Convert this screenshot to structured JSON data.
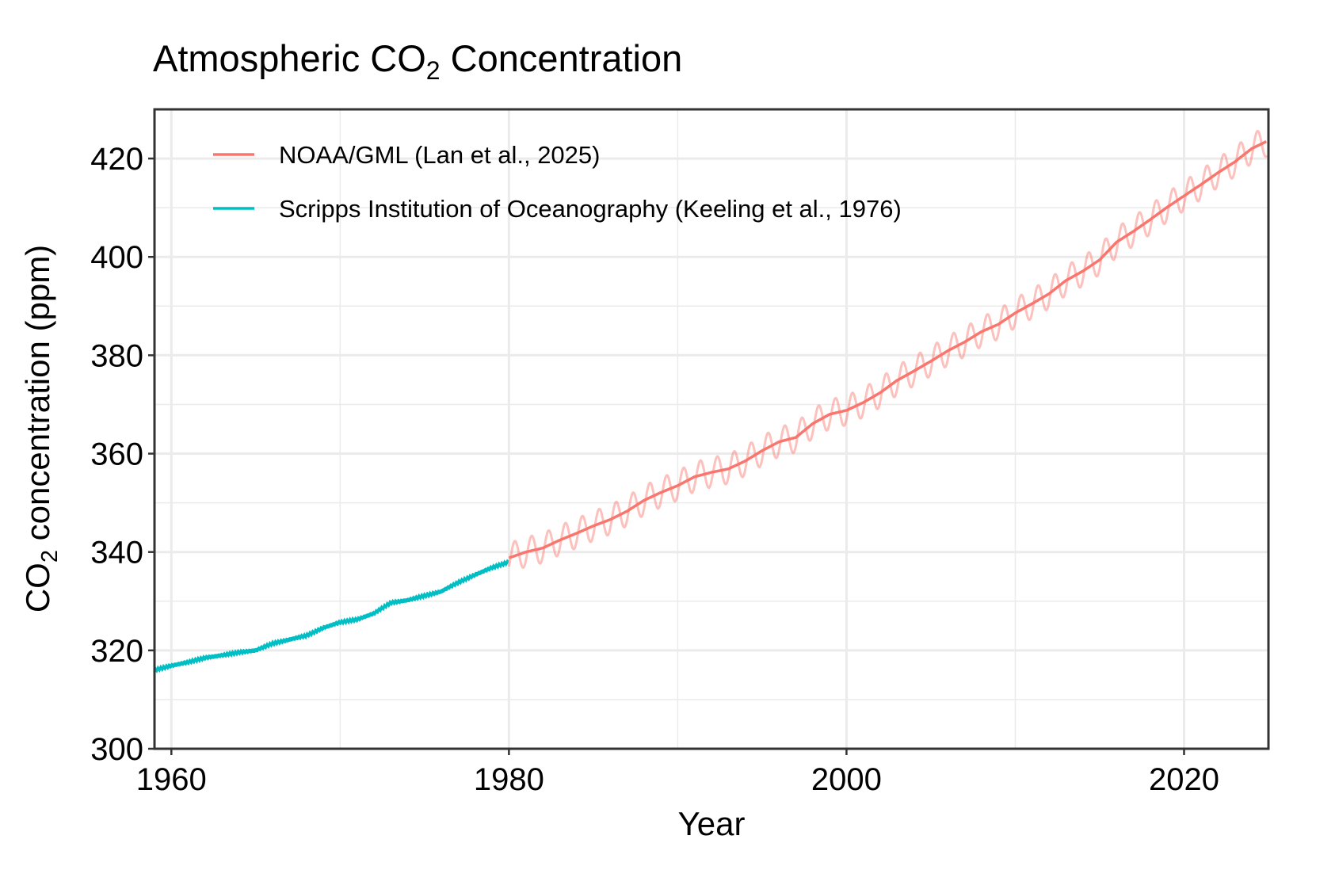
{
  "chart_data": {
    "type": "line",
    "title": {
      "main": "Atmospheric CO",
      "sub": "2",
      "rest": " Concentration"
    },
    "xlabel": "Year",
    "ylabel": {
      "main": "CO",
      "sub": "2",
      "rest": " concentration (ppm)"
    },
    "xlim": [
      1959,
      2025
    ],
    "ylim": [
      300,
      430
    ],
    "x_ticks": [
      1960,
      1980,
      2000,
      2020
    ],
    "y_ticks": [
      300,
      320,
      340,
      360,
      380,
      400,
      420
    ],
    "grid": true,
    "legend_position": "top-left",
    "series": [
      {
        "name": "NOAA/GML (Lan et al., 2025)",
        "color": "#F8766D",
        "seasonal_amplitude_ppm": 3,
        "x": [
          1980,
          1981,
          1982,
          1983,
          1984,
          1985,
          1986,
          1987,
          1988,
          1989,
          1990,
          1991,
          1992,
          1993,
          1994,
          1995,
          1996,
          1997,
          1998,
          1999,
          2000,
          2001,
          2002,
          2003,
          2004,
          2005,
          2006,
          2007,
          2008,
          2009,
          2010,
          2011,
          2012,
          2013,
          2014,
          2015,
          2016,
          2017,
          2018,
          2019,
          2020,
          2021,
          2022,
          2023,
          2024,
          2024.9
        ],
        "y": [
          338.8,
          340.0,
          340.8,
          342.4,
          343.8,
          345.3,
          346.6,
          348.3,
          350.5,
          352.1,
          353.5,
          355.3,
          356.2,
          356.9,
          358.5,
          360.6,
          362.4,
          363.3,
          366.1,
          368.0,
          368.8,
          370.4,
          372.4,
          374.9,
          376.8,
          378.8,
          380.9,
          382.7,
          384.8,
          386.3,
          388.6,
          390.5,
          392.5,
          395.2,
          397.1,
          399.4,
          403.0,
          405.2,
          407.6,
          410.1,
          412.4,
          414.7,
          417.1,
          419.3,
          422.0,
          423.5
        ]
      },
      {
        "name": "Scripps Institution of Oceanography (Keeling et al., 1976)",
        "color": "#00BFC4",
        "x": [
          1959,
          1960,
          1961,
          1962,
          1963,
          1964,
          1965,
          1966,
          1967,
          1968,
          1969,
          1970,
          1971,
          1972,
          1973,
          1974,
          1975,
          1976,
          1977,
          1978,
          1979,
          1980
        ],
        "y": [
          316.0,
          316.9,
          317.6,
          318.5,
          319.0,
          319.6,
          320.0,
          321.4,
          322.2,
          323.0,
          324.6,
          325.7,
          326.3,
          327.5,
          329.7,
          330.2,
          331.1,
          332.0,
          333.8,
          335.4,
          336.8,
          338.0
        ]
      }
    ]
  }
}
